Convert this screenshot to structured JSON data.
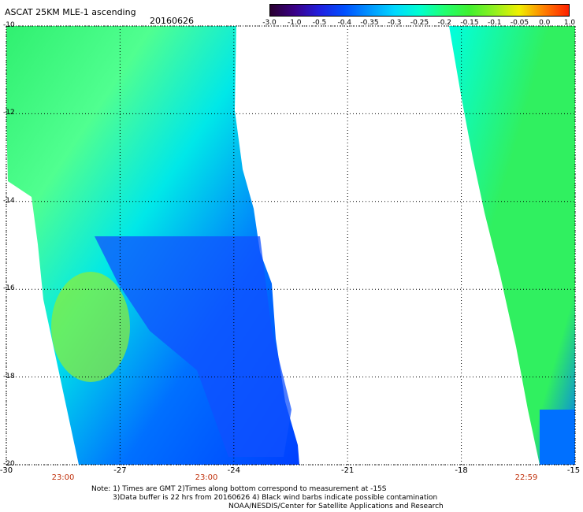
{
  "header": {
    "title": "ASCAT 25KM MLE-1 ascending",
    "date": "20160626"
  },
  "colorbar": {
    "labels": [
      "-3.0",
      "-1.0",
      "-0.5",
      "-0.4",
      "-0.35",
      "-0.3",
      "-0.25",
      "-0.2",
      "-0.15",
      "-0.1",
      "-0.05",
      "0.0",
      "1.0"
    ],
    "colors": [
      "#2a0030",
      "#3a0088",
      "#2020e0",
      "#0050ff",
      "#0096ff",
      "#00d8ff",
      "#00ffd0",
      "#20ff70",
      "#40f030",
      "#90f020",
      "#f0f000",
      "#ff8000",
      "#ff2000"
    ]
  },
  "axes": {
    "y_ticks": [
      "-10",
      "-12",
      "-14",
      "-16",
      "-18",
      "-20"
    ],
    "x_ticks": [
      "-30",
      "-27",
      "-24",
      "-21",
      "-18",
      "-15"
    ]
  },
  "times": {
    "labels": [
      "23:00",
      "23:00",
      "22:59"
    ],
    "color": "#c0300b"
  },
  "notes": {
    "line1": "Note: 1) Times are GMT 2)Times along bottom correspond to measurement at -15S",
    "line2": "3)Data buffer is 22 hrs from 20160626 4) Black wind barbs indicate possible contamination",
    "line3": "NOAA/NESDIS/Center for Satellite Applications and Research"
  }
}
